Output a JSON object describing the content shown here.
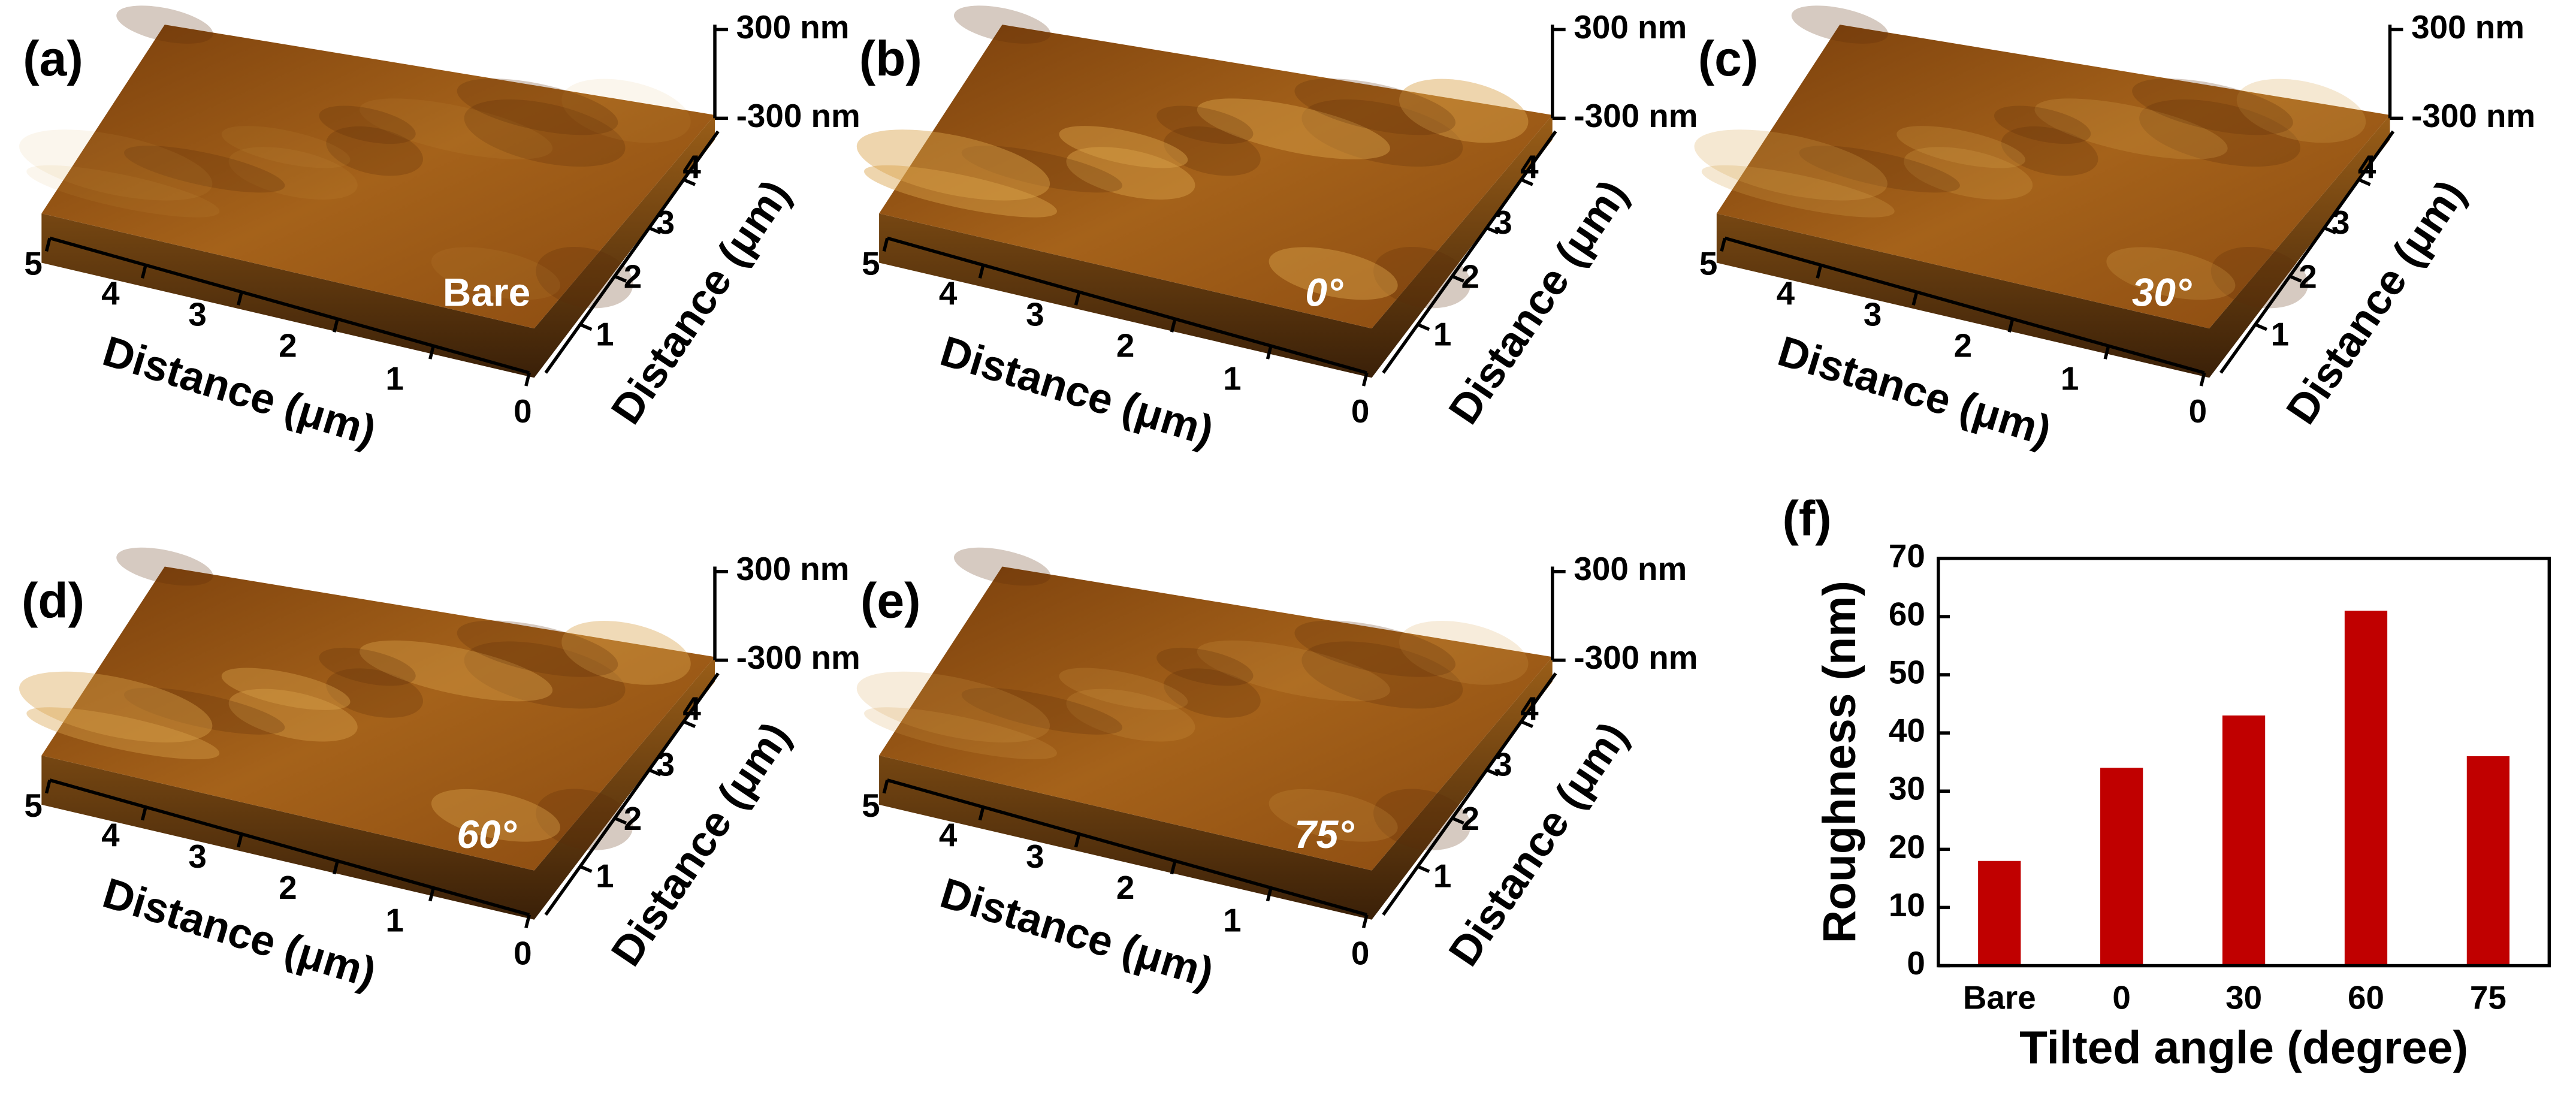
{
  "chart_data": {
    "type": "bar",
    "panel_label": "(f)",
    "categories": [
      "Bare",
      "0",
      "30",
      "60",
      "75"
    ],
    "values": [
      18,
      34,
      43,
      61,
      36
    ],
    "color": "#c00000",
    "ylim": [
      0,
      70
    ],
    "yticks": [
      0,
      10,
      20,
      30,
      40,
      50,
      60,
      70
    ],
    "ylabel": "Roughness (nm)",
    "xlabel": "Tilted angle (degree)"
  },
  "afm_panels": [
    {
      "label": "(a)",
      "z_labels": [
        "300 nm",
        "-300 nm"
      ],
      "x_ticks": [
        5,
        4,
        3,
        2,
        1,
        0
      ],
      "y_ticks": [
        1,
        2,
        3,
        4
      ],
      "x_title": "Distance (μm)",
      "y_title": "Distance (μm)",
      "annotation": "Bare"
    },
    {
      "label": "(b)",
      "z_labels": [
        "300 nm",
        "-300 nm"
      ],
      "x_ticks": [
        5,
        4,
        3,
        2,
        1,
        0
      ],
      "y_ticks": [
        1,
        2,
        3,
        4
      ],
      "x_title": "Distance (μm)",
      "y_title": "Distance (μm)",
      "annotation": "0°"
    },
    {
      "label": "(c)",
      "z_labels": [
        "300 nm",
        "-300 nm"
      ],
      "x_ticks": [
        5,
        4,
        3,
        2,
        1,
        0
      ],
      "y_ticks": [
        1,
        2,
        3,
        4
      ],
      "x_title": "Distance (μm)",
      "y_title": "Distance (μm)",
      "annotation": "30°"
    },
    {
      "label": "(d)",
      "z_labels": [
        "300 nm",
        "-300 nm"
      ],
      "x_ticks": [
        5,
        4,
        3,
        2,
        1,
        0
      ],
      "y_ticks": [
        1,
        2,
        3,
        4
      ],
      "x_title": "Distance (μm)",
      "y_title": "Distance (μm)",
      "annotation": "60°"
    },
    {
      "label": "(e)",
      "z_labels": [
        "300 nm",
        "-300 nm"
      ],
      "x_ticks": [
        5,
        4,
        3,
        2,
        1,
        0
      ],
      "y_ticks": [
        1,
        2,
        3,
        4
      ],
      "x_title": "Distance (μm)",
      "y_title": "Distance (μm)",
      "annotation": "75°"
    }
  ]
}
